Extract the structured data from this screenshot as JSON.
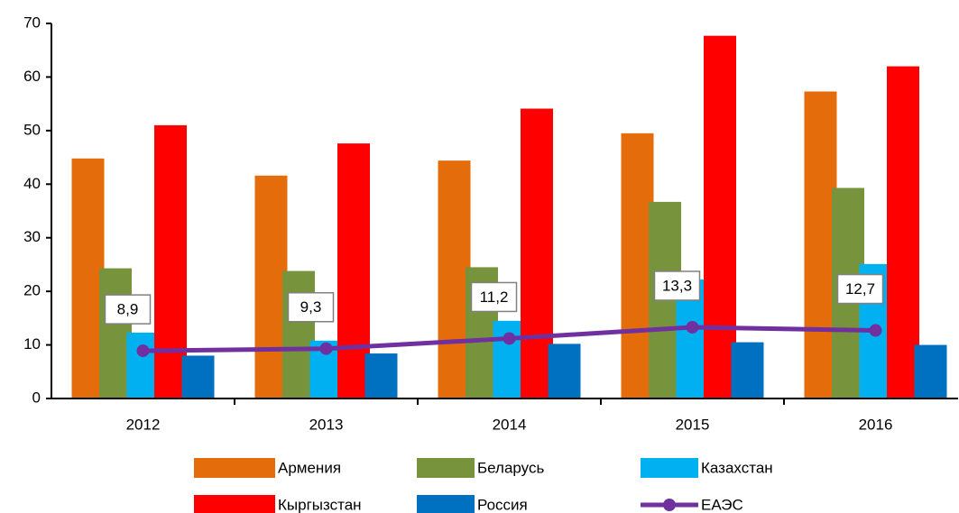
{
  "chart_data": {
    "type": "bar",
    "categories": [
      "2012",
      "2013",
      "2014",
      "2015",
      "2016"
    ],
    "series": [
      {
        "name": "Армения",
        "color": "#e46c0a",
        "values": [
          44.8,
          41.6,
          44.4,
          49.5,
          57.3
        ]
      },
      {
        "name": "Беларусь",
        "color": "#77933c",
        "values": [
          24.3,
          23.8,
          24.5,
          36.7,
          39.3
        ]
      },
      {
        "name": "Казахстан",
        "color": "#00b0f0",
        "values": [
          12.3,
          10.8,
          14.5,
          22.2,
          25.1
        ]
      },
      {
        "name": "Кыргызстан",
        "color": "#ff0000",
        "values": [
          51.0,
          47.6,
          54.1,
          67.7,
          62.0
        ]
      },
      {
        "name": "Россия",
        "color": "#0070c0",
        "values": [
          8.0,
          8.4,
          10.2,
          10.5,
          10.0
        ]
      },
      {
        "name": "ЕАЭС",
        "color": "#7030a0",
        "type": "line",
        "values": [
          8.9,
          9.3,
          11.2,
          13.3,
          12.7
        ],
        "value_labels": [
          "8,9",
          "9,3",
          "11,2",
          "13,3",
          "12,7"
        ]
      }
    ],
    "ylim": [
      0,
      70
    ],
    "yticks": [
      0,
      10,
      20,
      30,
      40,
      50,
      60,
      70
    ],
    "grid": false
  }
}
